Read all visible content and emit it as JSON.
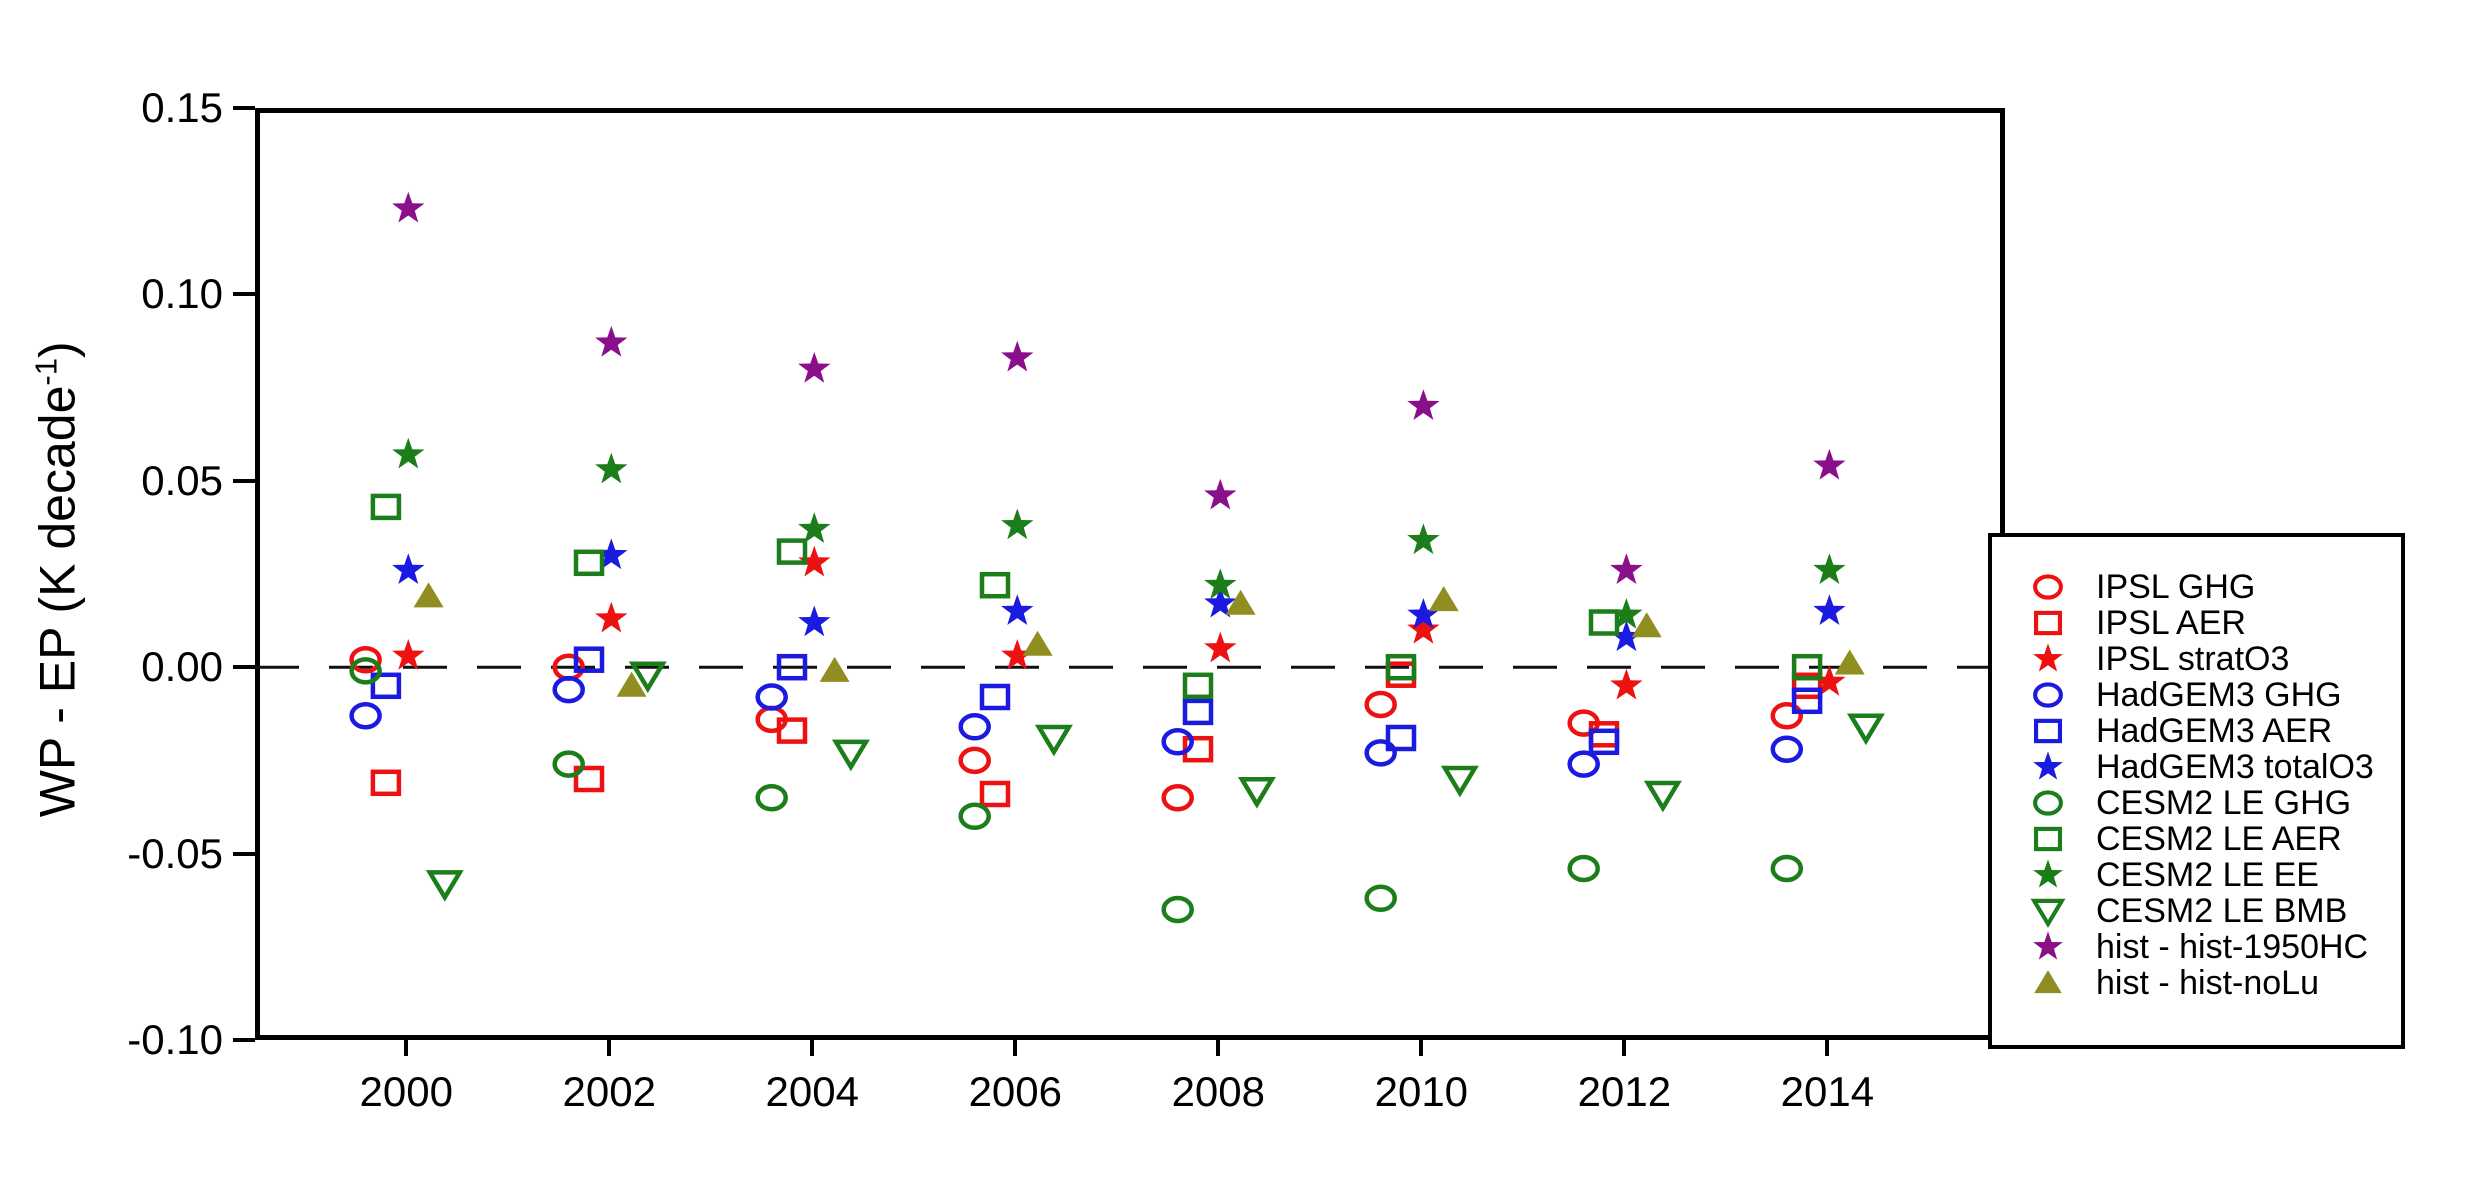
{
  "figure": {
    "background": "#ffffff",
    "ylabel_prefix": "WP - EP (K decade",
    "ylabel_sup": "-1",
    "ylabel_suffix": ")"
  },
  "chart_data": {
    "type": "scatter",
    "title": "",
    "xlabel": "",
    "ylabel": "WP - EP (K decade^-1)",
    "xlim": [
      1998.51,
      2015.75
    ],
    "ylim": [
      -0.1,
      0.15
    ],
    "grid": false,
    "legend_position": "outside-right",
    "zero_line": {
      "value": 0.0,
      "style": "dashed",
      "color": "#111111"
    },
    "x_ticks": [
      "2000",
      "2002",
      "2004",
      "2006",
      "2008",
      "2010",
      "2012",
      "2014"
    ],
    "x_tick_values": [
      2000,
      2002,
      2004,
      2006,
      2008,
      2010,
      2012,
      2014
    ],
    "y_ticks": [
      "0.15",
      "0.10",
      "0.05",
      "0.00",
      "-0.05",
      "-0.10"
    ],
    "y_tick_values": [
      0.15,
      0.1,
      0.05,
      0.0,
      -0.05,
      -0.1
    ],
    "colors": {
      "red": "#ee1111",
      "blue": "#1a1ae0",
      "green": "#1b7e1b",
      "purple": "#8a0f8a",
      "olive": "#908e20"
    },
    "categories": [
      2000,
      2002,
      2004,
      2006,
      2008,
      2010,
      2012,
      2014
    ],
    "series": [
      {
        "name": "IPSL GHG",
        "marker": "circle",
        "filled": false,
        "color": "red",
        "x_offset": -0.4,
        "values": [
          0.002,
          0.0,
          -0.014,
          -0.025,
          -0.035,
          -0.01,
          -0.015,
          -0.013
        ]
      },
      {
        "name": "IPSL AER",
        "marker": "square",
        "filled": false,
        "color": "red",
        "x_offset": -0.2,
        "values": [
          -0.031,
          -0.03,
          -0.017,
          -0.034,
          -0.022,
          -0.002,
          -0.018,
          -0.005
        ]
      },
      {
        "name": "IPSL stratO3",
        "marker": "star",
        "filled": true,
        "color": "red",
        "x_offset": 0.02,
        "values": [
          0.003,
          0.013,
          0.028,
          0.003,
          0.005,
          0.01,
          -0.005,
          -0.004
        ]
      },
      {
        "name": "HadGEM3 GHG",
        "marker": "circle",
        "filled": false,
        "color": "blue",
        "x_offset": -0.4,
        "values": [
          -0.013,
          -0.006,
          -0.008,
          -0.016,
          -0.02,
          -0.023,
          -0.026,
          -0.022
        ]
      },
      {
        "name": "HadGEM3 AER",
        "marker": "square",
        "filled": false,
        "color": "blue",
        "x_offset": -0.2,
        "values": [
          -0.005,
          0.002,
          0.0,
          -0.008,
          -0.012,
          -0.019,
          -0.02,
          -0.009
        ]
      },
      {
        "name": "HadGEM3 totalO3",
        "marker": "star",
        "filled": true,
        "color": "blue",
        "x_offset": 0.02,
        "values": [
          0.026,
          0.03,
          0.012,
          0.015,
          0.017,
          0.014,
          0.008,
          0.015
        ]
      },
      {
        "name": "CESM2 LE GHG",
        "marker": "circle",
        "filled": false,
        "color": "green",
        "x_offset": -0.4,
        "values": [
          -0.001,
          -0.026,
          -0.035,
          -0.04,
          -0.065,
          -0.062,
          -0.054,
          -0.054
        ]
      },
      {
        "name": "CESM2 LE AER",
        "marker": "square",
        "filled": false,
        "color": "green",
        "x_offset": -0.2,
        "values": [
          0.043,
          0.028,
          0.031,
          0.022,
          -0.005,
          0.0,
          0.012,
          0.0
        ]
      },
      {
        "name": "CESM2 LE EE",
        "marker": "star",
        "filled": true,
        "color": "green",
        "x_offset": 0.02,
        "values": [
          0.057,
          0.053,
          0.037,
          0.038,
          0.022,
          0.034,
          0.014,
          0.026
        ]
      },
      {
        "name": "CESM2 LE BMB",
        "marker": "triangle-down",
        "filled": false,
        "color": "green",
        "x_offset": 0.38,
        "values": [
          -0.058,
          -0.002,
          -0.023,
          -0.019,
          -0.033,
          -0.03,
          -0.034,
          -0.016
        ]
      },
      {
        "name": "hist - hist-1950HC",
        "marker": "star",
        "filled": true,
        "color": "purple",
        "x_offset": 0.02,
        "values": [
          0.123,
          0.087,
          0.08,
          0.083,
          0.046,
          0.07,
          0.026,
          0.054
        ]
      },
      {
        "name": "hist - hist-noLu",
        "marker": "triangle-up",
        "filled": true,
        "color": "olive",
        "x_offset": 0.22,
        "values": [
          0.019,
          -0.005,
          -0.001,
          0.006,
          0.017,
          0.018,
          0.011,
          0.001
        ]
      }
    ]
  }
}
